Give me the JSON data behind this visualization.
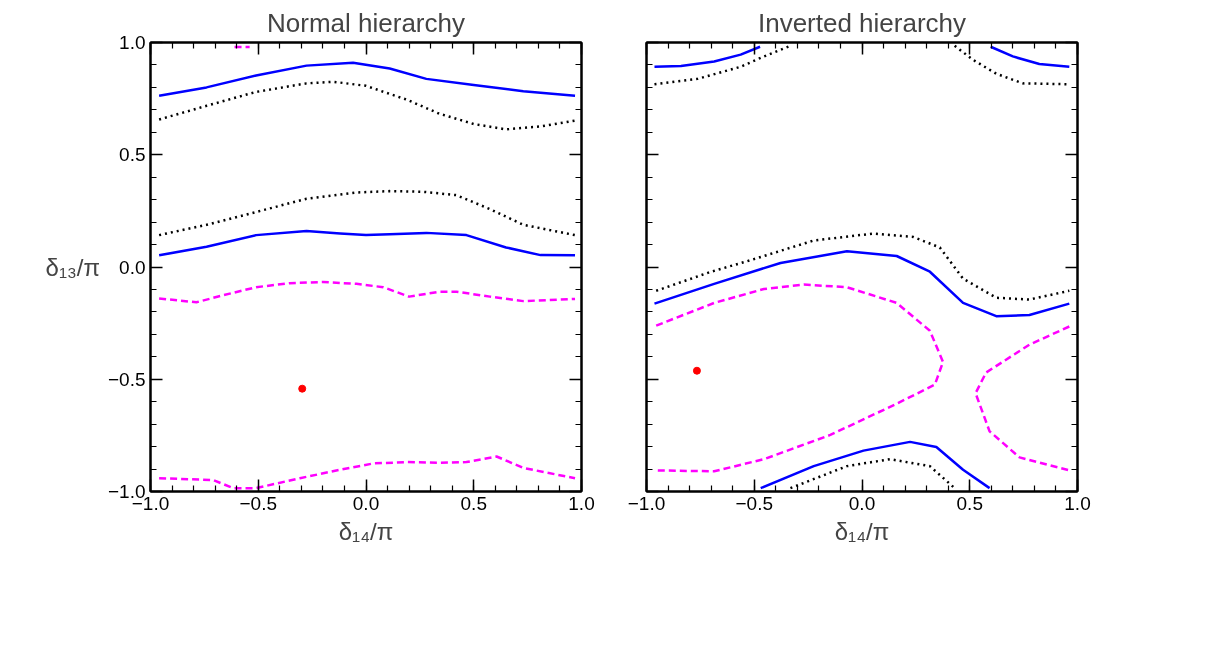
{
  "chart_data": [
    {
      "type": "line",
      "title": "Normal hierarchy",
      "xlabel": "δ₁₄/π",
      "ylabel": "δ₁₃/π",
      "xlim": [
        -1.0,
        1.0
      ],
      "ylim": [
        -1.0,
        1.0
      ],
      "xticks": [
        {
          "value": -1.0,
          "label": "−1.0"
        },
        {
          "value": -0.5,
          "label": "−0.5"
        },
        {
          "value": 0,
          "label": "0.0"
        },
        {
          "value": 0.5,
          "label": "0.5"
        },
        {
          "value": 1.0,
          "label": "1.0"
        }
      ],
      "yticks": [
        {
          "value": -1.0,
          "label": "−1.0"
        },
        {
          "value": -0.5,
          "label": "−0.5"
        },
        {
          "value": 0,
          "label": "0.0"
        },
        {
          "value": 0.5,
          "label": "0.5"
        },
        {
          "value": 1.0,
          "label": "1.0"
        }
      ],
      "grid": false,
      "series": [
        {
          "color": "#0000ff",
          "line_style": "solid",
          "x": [
            -0.96,
            -0.74,
            -0.51,
            -0.276,
            -0.06,
            0.11,
            0.28,
            0.5,
            0.73,
            0.97
          ],
          "values": [
            0.763,
            0.8,
            0.853,
            0.897,
            0.91,
            0.884,
            0.838,
            0.811,
            0.783,
            0.763
          ]
        },
        {
          "color": "#000000",
          "line_style": "dotted",
          "x": [
            -0.96,
            -0.74,
            -0.51,
            -0.276,
            -0.15,
            0.0,
            0.19,
            0.34,
            0.5,
            0.65,
            0.81,
            0.97
          ],
          "values": [
            0.657,
            0.718,
            0.78,
            0.818,
            0.825,
            0.807,
            0.745,
            0.683,
            0.637,
            0.613,
            0.626,
            0.652
          ]
        },
        {
          "color": "#000000",
          "line_style": "dotted",
          "x": [
            -0.96,
            -0.74,
            -0.51,
            -0.276,
            -0.044,
            0.11,
            0.265,
            0.42,
            0.575,
            0.73,
            0.97
          ],
          "values": [
            0.142,
            0.188,
            0.245,
            0.304,
            0.332,
            0.338,
            0.335,
            0.32,
            0.258,
            0.188,
            0.142
          ]
        },
        {
          "color": "#0000ff",
          "line_style": "solid",
          "x": [
            -0.96,
            -0.74,
            -0.51,
            -0.276,
            -0.12,
            0.0,
            0.11,
            0.28,
            0.466,
            0.65,
            0.81,
            0.97
          ],
          "values": [
            0.052,
            0.09,
            0.142,
            0.16,
            0.149,
            0.142,
            0.146,
            0.152,
            0.142,
            0.087,
            0.053,
            0.052
          ]
        },
        {
          "color": "#ff00ff",
          "line_style": "dashed",
          "x": [
            -0.96,
            -0.787,
            -0.663,
            -0.51,
            -0.354,
            -0.2,
            -0.044,
            0.08,
            0.2,
            0.34,
            0.42,
            0.575,
            0.73,
            0.97
          ],
          "values": [
            -0.14,
            -0.157,
            -0.126,
            -0.09,
            -0.072,
            -0.067,
            -0.075,
            -0.09,
            -0.132,
            -0.11,
            -0.11,
            -0.132,
            -0.152,
            -0.142
          ]
        },
        {
          "color": "#ff00ff",
          "line_style": "dashed",
          "x": [
            -0.96,
            -0.709,
            -0.616,
            -0.51,
            -0.307,
            -0.12,
            0.034,
            0.19,
            0.34,
            0.466,
            0.606,
            0.73,
            0.97
          ],
          "values": [
            -0.941,
            -0.949,
            -0.985,
            -0.985,
            -0.941,
            -0.903,
            -0.875,
            -0.869,
            -0.872,
            -0.869,
            -0.844,
            -0.895,
            -0.941
          ]
        },
        {
          "color": "#ff00ff",
          "line_style": "dashed",
          "x": [
            -0.61,
            -0.54
          ],
          "values": [
            0.98,
            0.98
          ]
        },
        {
          "type": "scatter",
          "marker": "circle",
          "color": "#ff0000",
          "x": [
            -0.296
          ],
          "values": [
            -0.542
          ]
        }
      ]
    },
    {
      "type": "line",
      "title": "Inverted hierarchy",
      "xlabel": "δ₁₄/π",
      "xlim": [
        -1.0,
        1.0
      ],
      "ylim": [
        -1.0,
        1.0
      ],
      "xticks": [
        {
          "value": -1.0,
          "label": "−1.0"
        },
        {
          "value": -0.5,
          "label": "−0.5"
        },
        {
          "value": 0,
          "label": "0.0"
        },
        {
          "value": 0.5,
          "label": "0.5"
        },
        {
          "value": 1.0,
          "label": "1.0"
        }
      ],
      "yticks": [
        {
          "value": -1.0,
          "label": null
        },
        {
          "value": -0.5,
          "label": null
        },
        {
          "value": 0,
          "label": null
        },
        {
          "value": 0.5,
          "label": null
        },
        {
          "value": 1.0,
          "label": null
        }
      ],
      "tick_labels": "x",
      "grid": false,
      "series": [
        {
          "color": "#0000ff",
          "line_style": "solid",
          "x": [
            -0.963,
            -0.84,
            -0.686,
            -0.563,
            -0.473
          ],
          "values": [
            0.892,
            0.895,
            0.915,
            0.946,
            0.981
          ]
        },
        {
          "color": "#000000",
          "line_style": "dotted",
          "x": [
            -0.963,
            -0.763,
            -0.563,
            -0.455,
            -0.332
          ],
          "values": [
            0.814,
            0.838,
            0.892,
            0.938,
            0.985
          ]
        },
        {
          "color": "#0000ff",
          "line_style": "solid",
          "x": [
            0.597,
            0.7,
            0.823,
            0.962
          ],
          "values": [
            0.981,
            0.938,
            0.904,
            0.892
          ]
        },
        {
          "color": "#000000",
          "line_style": "dotted",
          "x": [
            0.43,
            0.515,
            0.623,
            0.746,
            0.962
          ],
          "values": [
            0.985,
            0.923,
            0.861,
            0.818,
            0.814
          ]
        },
        {
          "color": "#000000",
          "line_style": "dotted",
          "x": [
            -0.955,
            -0.7,
            -0.532,
            -0.224,
            0.053,
            0.238,
            0.361,
            0.469,
            0.623,
            0.777,
            0.962
          ],
          "values": [
            -0.106,
            -0.021,
            0.026,
            0.118,
            0.149,
            0.134,
            0.087,
            -0.052,
            -0.137,
            -0.145,
            -0.106
          ]
        },
        {
          "color": "#0000ff",
          "line_style": "solid",
          "x": [
            -0.963,
            -0.686,
            -0.378,
            -0.07,
            0.161,
            0.315,
            0.469,
            0.623,
            0.777,
            0.962
          ],
          "values": [
            -0.163,
            -0.075,
            0.018,
            0.07,
            0.049,
            -0.021,
            -0.16,
            -0.219,
            -0.214,
            -0.163
          ]
        },
        {
          "color": "#ff00ff",
          "line_style": "dashed",
          "x": [
            -0.955,
            -0.686,
            -0.455,
            -0.27,
            -0.07,
            0.161,
            0.315,
            0.376,
            0.338,
            0.161,
            -0.147,
            -0.455,
            -0.686,
            -0.963
          ],
          "values": [
            -0.261,
            -0.16,
            -0.098,
            -0.078,
            -0.09,
            -0.16,
            -0.284,
            -0.423,
            -0.524,
            -0.609,
            -0.748,
            -0.856,
            -0.91,
            -0.906
          ]
        },
        {
          "color": "#ff00ff",
          "line_style": "dashed",
          "x": [
            0.962,
            0.777,
            0.576,
            0.527,
            0.592,
            0.731,
            0.962
          ],
          "values": [
            -0.265,
            -0.346,
            -0.47,
            -0.562,
            -0.732,
            -0.848,
            -0.906
          ]
        },
        {
          "color": "#0000ff",
          "line_style": "solid",
          "x": [
            -0.47,
            -0.224,
            0.007,
            0.223,
            0.345,
            0.469,
            0.592
          ],
          "values": [
            -0.985,
            -0.887,
            -0.818,
            -0.779,
            -0.802,
            -0.903,
            -0.985
          ]
        },
        {
          "color": "#000000",
          "line_style": "dotted",
          "x": [
            -0.332,
            -0.07,
            0.13,
            0.315,
            0.43
          ],
          "values": [
            -0.985,
            -0.887,
            -0.856,
            -0.887,
            -0.985
          ]
        },
        {
          "type": "scatter",
          "marker": "circle",
          "color": "#ff0000",
          "x": [
            -0.766
          ],
          "values": [
            -0.462
          ]
        }
      ]
    }
  ]
}
